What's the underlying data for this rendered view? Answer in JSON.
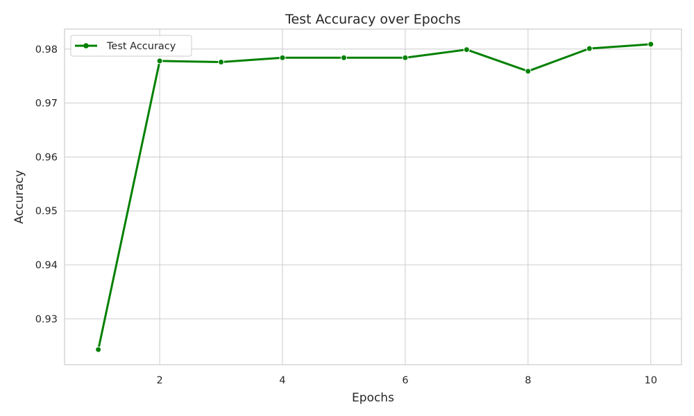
{
  "chart_data": {
    "type": "line",
    "title": "Test Accuracy over Epochs",
    "xlabel": "Epochs",
    "ylabel": "Accuracy",
    "xlim": [
      0.45,
      10.5
    ],
    "ylim": [
      0.9215,
      0.9837
    ],
    "xticks": [
      2,
      4,
      6,
      8,
      10
    ],
    "xtick_labels": [
      "2",
      "4",
      "6",
      "8",
      "10"
    ],
    "yticks": [
      0.93,
      0.94,
      0.95,
      0.96,
      0.97,
      0.98
    ],
    "ytick_labels": [
      "0.93",
      "0.94",
      "0.95",
      "0.96",
      "0.97",
      "0.98"
    ],
    "grid": true,
    "legend_position": "upper-left",
    "x": [
      1,
      2,
      3,
      4,
      5,
      6,
      7,
      8,
      9,
      10
    ],
    "series": [
      {
        "name": "Test Accuracy",
        "color": "#008000",
        "marker": "circle",
        "values": [
          0.9243,
          0.9778,
          0.9776,
          0.9784,
          0.9784,
          0.9784,
          0.9799,
          0.9759,
          0.9801,
          0.9809
        ]
      }
    ]
  }
}
